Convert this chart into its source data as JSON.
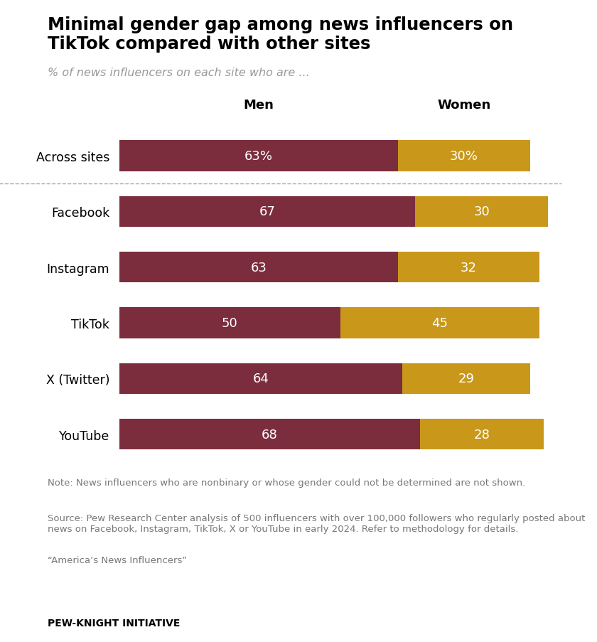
{
  "title_line1": "Minimal gender gap among news influencers on",
  "title_line2": "TikTok compared with other sites",
  "subtitle": "% of news influencers on each site who are ...",
  "categories": [
    "Across sites",
    "Facebook",
    "Instagram",
    "TikTok",
    "X (Twitter)",
    "YouTube"
  ],
  "men_values": [
    63,
    67,
    63,
    50,
    64,
    68
  ],
  "women_values": [
    30,
    30,
    32,
    45,
    29,
    28
  ],
  "men_labels": [
    "63%",
    "67",
    "63",
    "50",
    "64",
    "68"
  ],
  "women_labels": [
    "30%",
    "30",
    "32",
    "45",
    "29",
    "28"
  ],
  "men_color": "#7b2d3e",
  "women_color": "#c9981a",
  "col_men_label": "Men",
  "col_women_label": "Women",
  "note_line1": "Note: News influencers who are nonbinary or whose gender could not be determined are not shown.",
  "note_line2": "Source: Pew Research Center analysis of 500 influencers with over 100,000 followers who regularly posted about news on Facebook, Instagram, TikTok, X or YouTube in early 2024. Refer to methodology for details.",
  "note_line3": "“America’s News Influencers”",
  "footer": "PEW-KNIGHT INITIATIVE",
  "background_color": "#ffffff",
  "xlim": [
    0,
    100
  ],
  "bar_height": 0.55,
  "figsize": [
    8.4,
    9.04
  ],
  "dpi": 100
}
